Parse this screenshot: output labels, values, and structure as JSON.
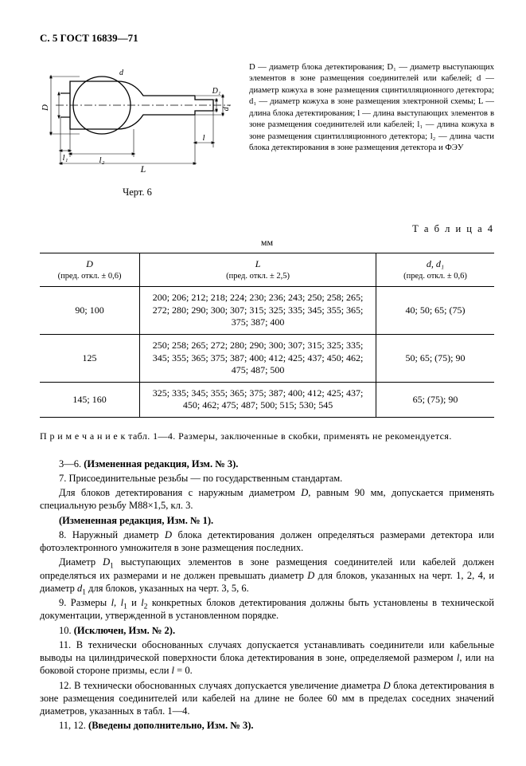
{
  "header": "С. 5 ГОСТ 16839—71",
  "figure": {
    "caption": "Черт. 6",
    "labels": {
      "D": "D",
      "D1": "D₁",
      "d": "d",
      "d1": "d₁",
      "L": "L",
      "l": "l",
      "l1": "l₁",
      "l2": "l₂"
    },
    "stroke": "#000000",
    "fill": "#ffffff"
  },
  "legend": "D — диаметр блока детектирования; D₁ — диаметр выступающих элементов в зоне размещения соединителей или кабелей; d — диаметр кожуха в зоне размещения сцинтилляционного детектора; d₁ — диаметр кожуха в зоне размещения электронной схемы; L — длина блока детектирования; l — длина выступающих элементов в зоне размещения соединителей или кабелей; l₁ — длина кожуха в зоне размещения сцинтилляционного детектора; l₂ — длина части блока детектирования в зоне размещения детектора и ФЭУ",
  "table": {
    "label": "Т а б л и ц а  4",
    "unit": "мм",
    "columns": [
      {
        "sym": "D",
        "tol": "(пред. откл. ± 0,6)"
      },
      {
        "sym": "L",
        "tol": "(пред. откл. ± 2,5)"
      },
      {
        "sym": "d, d₁",
        "tol": "(пред. откл. ± 0,6)"
      }
    ],
    "rows": [
      {
        "D": "90; 100",
        "L": "200; 206; 212; 218; 224; 230; 236; 243; 250; 258; 265; 272; 280; 290; 300; 307; 315; 325; 335; 345; 355; 365; 375; 387; 400",
        "d": "40; 50; 65; (75)"
      },
      {
        "D": "125",
        "L": "250; 258; 265; 272; 280; 290; 300; 307; 315; 325; 335; 345; 355; 365; 375; 387; 400; 412; 425; 437; 450; 462; 475; 487; 500",
        "d": "50; 65; (75); 90"
      },
      {
        "D": "145; 160",
        "L": "325; 335; 345; 355; 365; 375; 387; 400; 412; 425; 437; 450; 462; 475; 487; 500; 515; 530; 545",
        "d": "65; (75); 90"
      }
    ]
  },
  "note": "П р и м е ч а н и е  к табл. 1—4. Размеры, заключенные в скобки, применять не рекомендуется.",
  "paragraphs": [
    "3—6. <b>(Измененная редакция, Изм. № 3).</b>",
    "7. Присоединительные резьбы — по государственным стандартам.",
    "Для блоков детектирования с наружным диаметром <i>D</i>, равным 90 мм, допускается применять специальную резьбу М88×1,5, кл. 3.",
    "<b>(Измененная редакция, Изм. № 1).</b>",
    "8. Наружный диаметр <i>D</i> блока детектирования должен определяться размерами детектора или фотоэлектронного умножителя в зоне размещения последних.",
    "Диаметр <i>D</i><span class=\"sub\">1</span> выступающих элементов в зоне размещения соединителей или кабелей должен определяться их размерами и не должен превышать диаметр <i>D</i> для блоков, указанных на черт. 1, 2, 4, и диаметр <i>d</i><span class=\"sub\">1</span> для блоков, указанных на черт. 3, 5, 6.",
    "9. Размеры <i>l</i>, <i>l</i><span class=\"sub\">1</span> и <i>l</i><span class=\"sub\">2</span> конкретных блоков детектирования должны быть установлены в технической документации, утвержденной в установленном порядке.",
    "10. <b>(Исключен, Изм. № 2).</b>",
    "11. В технически обоснованных случаях допускается устанавливать соединители или кабельные выводы на цилиндрической поверхности блока детектирования в зоне, определяемой размером <i>l</i>, или на боковой стороне призмы, если <i>l</i> = 0.",
    "12. В технически обоснованных случаях допускается увеличение диаметра <i>D</i> блока детектирования в зоне размещения соединителей или кабелей на длине не более 60 мм в пределах соседних значений диаметров, указанных в табл. 1—4.",
    "11, 12. <b>(Введены дополнительно, Изм. № 3).</b>"
  ]
}
